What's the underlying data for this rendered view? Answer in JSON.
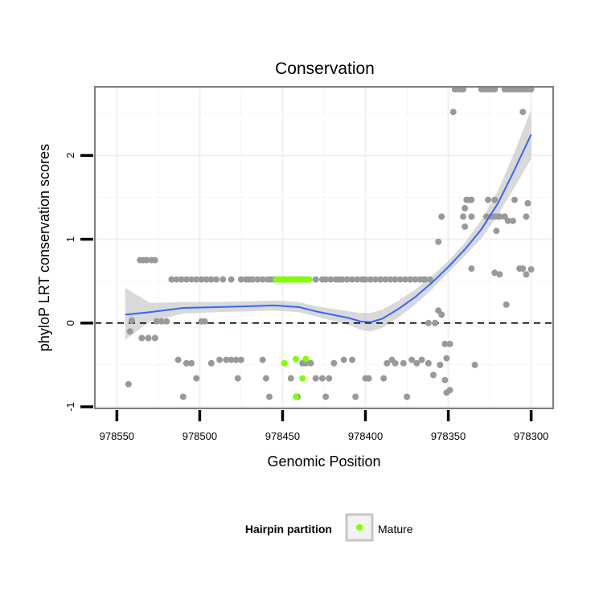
{
  "chart_data": {
    "type": "scatter",
    "title": "Conservation",
    "xlabel": "Genomic Position",
    "ylabel": "phyloP LRT conservation scores",
    "x_reversed": true,
    "xlim": [
      978300,
      978550
    ],
    "ylim": [
      -1,
      2.8
    ],
    "x_ticks": [
      978550,
      978500,
      978450,
      978400,
      978350,
      978300
    ],
    "y_ticks": [
      -1,
      0,
      1,
      2
    ],
    "grid": true,
    "reference_line": {
      "y": 0,
      "style": "dashed"
    },
    "legend": {
      "placement": "bottom",
      "title": "Hairpin partition",
      "entries": [
        {
          "label": "Mature",
          "color": "#7fff00"
        }
      ]
    },
    "colors": {
      "other": "#999999",
      "mature": "#7fff00",
      "smooth": "#3366ff",
      "band": "#cccccc"
    },
    "series": [
      {
        "points": [
          [
            978543,
            -0.73
          ],
          [
            978542,
            -0.1
          ],
          [
            978541,
            0.03
          ],
          [
            978536,
            0.75
          ],
          [
            978534,
            0.75
          ],
          [
            978532,
            0.75
          ],
          [
            978529,
            0.75
          ],
          [
            978527,
            0.75
          ],
          [
            978535,
            -0.18
          ],
          [
            978531,
            -0.18
          ],
          [
            978527,
            -0.18
          ],
          [
            978526,
            0.02
          ],
          [
            978523,
            0.02
          ],
          [
            978520,
            0.02
          ],
          [
            978517,
            0.52
          ],
          [
            978514,
            0.52
          ],
          [
            978511,
            0.52
          ],
          [
            978508,
            0.52
          ],
          [
            978505,
            0.52
          ],
          [
            978502,
            0.52
          ],
          [
            978499,
            0.52
          ],
          [
            978496,
            0.52
          ],
          [
            978493,
            0.52
          ],
          [
            978490,
            0.52
          ],
          [
            978513,
            -0.44
          ],
          [
            978508,
            -0.48
          ],
          [
            978505,
            -0.48
          ],
          [
            978502,
            -0.66
          ],
          [
            978493,
            -0.48
          ],
          [
            978488,
            -0.44
          ],
          [
            978484,
            -0.44
          ],
          [
            978481,
            -0.44
          ],
          [
            978478,
            -0.44
          ],
          [
            978475,
            -0.44
          ],
          [
            978510,
            -0.88
          ],
          [
            978499,
            0.02
          ],
          [
            978497,
            0.02
          ],
          [
            978486,
            0.52
          ],
          [
            978481,
            0.52
          ],
          [
            978477,
            -0.66
          ],
          [
            978475,
            0.52
          ],
          [
            978472,
            0.52
          ],
          [
            978470,
            0.52
          ],
          [
            978468,
            0.52
          ],
          [
            978465,
            0.52
          ],
          [
            978462,
            0.52
          ],
          [
            978459,
            0.52
          ],
          [
            978457,
            0.52
          ],
          [
            978455,
            0.52
          ],
          [
            978452,
            0.52
          ],
          [
            978449,
            0.52
          ],
          [
            978446,
            0.52
          ],
          [
            978443,
            0.52
          ],
          [
            978441,
            0.52
          ],
          [
            978438,
            0.52
          ],
          [
            978436,
            0.52
          ],
          [
            978434,
            0.52
          ],
          [
            978430,
            0.52
          ],
          [
            978426,
            0.52
          ],
          [
            978424,
            0.52
          ],
          [
            978421,
            0.52
          ],
          [
            978418,
            0.52
          ],
          [
            978416,
            0.52
          ],
          [
            978414,
            0.52
          ],
          [
            978411,
            0.52
          ],
          [
            978408,
            0.52
          ],
          [
            978405,
            0.52
          ],
          [
            978402,
            0.52
          ],
          [
            978400,
            0.52
          ],
          [
            978397,
            0.52
          ],
          [
            978394,
            0.52
          ],
          [
            978391,
            0.52
          ],
          [
            978388,
            0.52
          ],
          [
            978385,
            0.52
          ],
          [
            978382,
            0.52
          ],
          [
            978379,
            0.52
          ],
          [
            978376,
            0.52
          ],
          [
            978373,
            0.52
          ],
          [
            978370,
            0.52
          ],
          [
            978367,
            0.52
          ],
          [
            978365,
            0.52
          ],
          [
            978462,
            -0.44
          ],
          [
            978460,
            -0.66
          ],
          [
            978458,
            -0.88
          ],
          [
            978445,
            -0.66
          ],
          [
            978441,
            -0.88
          ],
          [
            978438,
            -0.48
          ],
          [
            978436,
            -0.48
          ],
          [
            978433,
            -0.48
          ],
          [
            978430,
            -0.66
          ],
          [
            978426,
            -0.66
          ],
          [
            978424,
            -0.88
          ],
          [
            978422,
            -0.66
          ],
          [
            978419,
            -0.48
          ],
          [
            978413,
            -0.44
          ],
          [
            978408,
            -0.44
          ],
          [
            978406,
            -0.88
          ],
          [
            978400,
            -0.66
          ],
          [
            978398,
            -0.66
          ],
          [
            978389,
            -0.66
          ],
          [
            978387,
            -0.48
          ],
          [
            978384,
            -0.44
          ],
          [
            978382,
            -0.48
          ],
          [
            978377,
            -0.48
          ],
          [
            978375,
            -0.88
          ],
          [
            978372,
            -0.44
          ],
          [
            978369,
            -0.48
          ],
          [
            978366,
            -0.44
          ],
          [
            978362,
            -0.48
          ],
          [
            978359,
            -0.62
          ],
          [
            978355,
            -0.5
          ],
          [
            978352,
            -0.25
          ],
          [
            978351,
            -0.83
          ],
          [
            978351,
            -0.42
          ],
          [
            978349,
            -0.25
          ],
          [
            978352,
            -0.68
          ],
          [
            978349,
            -0.8
          ],
          [
            978364,
            0.52
          ],
          [
            978361,
            0.52
          ],
          [
            978362,
            0.0
          ],
          [
            978356,
            0.97
          ],
          [
            978354,
            1.27
          ],
          [
            978356,
            0.15
          ],
          [
            978354,
            0.1
          ],
          [
            978358,
            0.0
          ],
          [
            978346,
            2.79
          ],
          [
            978344,
            2.79
          ],
          [
            978342,
            2.79
          ],
          [
            978347,
            2.52
          ],
          [
            978341,
            2.79
          ],
          [
            978341,
            1.27
          ],
          [
            978339,
            1.47
          ],
          [
            978337,
            1.47
          ],
          [
            978336,
            1.47
          ],
          [
            978340,
            1.37
          ],
          [
            978340,
            1.15
          ],
          [
            978336,
            1.27
          ],
          [
            978336,
            0.65
          ],
          [
            978334,
            -0.5
          ],
          [
            978330,
            2.79
          ],
          [
            978328,
            2.79
          ],
          [
            978326,
            2.79
          ],
          [
            978324,
            2.79
          ],
          [
            978322,
            2.79
          ],
          [
            978322,
            1.27
          ],
          [
            978327,
            1.27
          ],
          [
            978326,
            1.47
          ],
          [
            978324,
            1.27
          ],
          [
            978322,
            1.47
          ],
          [
            978321,
            1.1
          ],
          [
            978320,
            1.27
          ],
          [
            978319,
            1.27
          ],
          [
            978322,
            0.6
          ],
          [
            978319,
            0.58
          ],
          [
            978316,
            2.79
          ],
          [
            978314,
            2.79
          ],
          [
            978312,
            2.79
          ],
          [
            978310,
            2.79
          ],
          [
            978308,
            2.79
          ],
          [
            978306,
            2.79
          ],
          [
            978304,
            2.79
          ],
          [
            978302,
            2.79
          ],
          [
            978300,
            2.79
          ],
          [
            978316,
            1.27
          ],
          [
            978314,
            1.22
          ],
          [
            978311,
            1.22
          ],
          [
            978310,
            1.47
          ],
          [
            978315,
            0.22
          ],
          [
            978307,
            0.65
          ],
          [
            978305,
            0.65
          ],
          [
            978303,
            1.27
          ],
          [
            978303,
            0.58
          ],
          [
            978302,
            1.43
          ],
          [
            978300,
            0.64
          ],
          [
            978305,
            2.52
          ]
        ]
      },
      {
        "name": "Mature",
        "points": [
          [
            978454,
            0.52
          ],
          [
            978452,
            0.52
          ],
          [
            978450,
            0.52
          ],
          [
            978448,
            0.52
          ],
          [
            978446,
            0.52
          ],
          [
            978444,
            0.52
          ],
          [
            978442,
            0.52
          ],
          [
            978440,
            0.52
          ],
          [
            978438,
            0.52
          ],
          [
            978436,
            0.52
          ],
          [
            978434,
            0.52
          ],
          [
            978449,
            -0.48
          ],
          [
            978442,
            -0.43
          ],
          [
            978436,
            -0.43
          ],
          [
            978438,
            -0.66
          ],
          [
            978442,
            -0.88
          ]
        ]
      }
    ],
    "smooth": {
      "x": [
        978545,
        978530,
        978510,
        978490,
        978470,
        978455,
        978440,
        978430,
        978420,
        978410,
        978403,
        978397,
        978390,
        978380,
        978370,
        978360,
        978350,
        978340,
        978330,
        978320,
        978310,
        978300
      ],
      "y": [
        0.1,
        0.13,
        0.18,
        0.19,
        0.2,
        0.21,
        0.19,
        0.14,
        0.1,
        0.06,
        0.02,
        0.01,
        0.05,
        0.17,
        0.31,
        0.48,
        0.67,
        0.88,
        1.12,
        1.43,
        1.83,
        2.25
      ],
      "band_lower": [
        -0.2,
        0.02,
        0.11,
        0.13,
        0.14,
        0.15,
        0.13,
        0.08,
        0.03,
        -0.02,
        -0.08,
        -0.1,
        -0.06,
        0.07,
        0.22,
        0.4,
        0.6,
        0.8,
        1.01,
        1.29,
        1.62,
        1.96
      ],
      "band_upper": [
        0.42,
        0.24,
        0.25,
        0.25,
        0.26,
        0.27,
        0.25,
        0.2,
        0.17,
        0.14,
        0.12,
        0.12,
        0.16,
        0.27,
        0.4,
        0.56,
        0.74,
        0.96,
        1.23,
        1.58,
        2.04,
        2.55
      ]
    }
  }
}
